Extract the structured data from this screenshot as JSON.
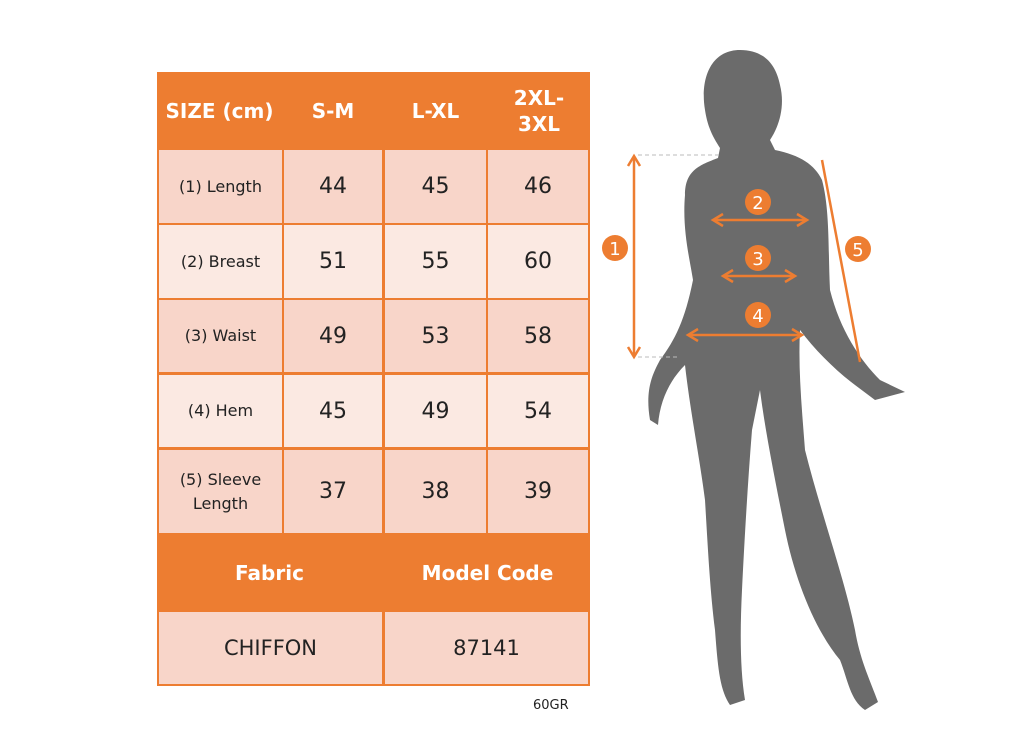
{
  "header": {
    "size": "SIZE (cm)",
    "cols": [
      "S-M",
      "L-XL",
      "2XL-3XL"
    ]
  },
  "rows": [
    {
      "label": "(1) Length",
      "values": [
        "44",
        "45",
        "46"
      ]
    },
    {
      "label": "(2) Breast",
      "values": [
        "51",
        "55",
        "60"
      ]
    },
    {
      "label": "(3) Waist",
      "values": [
        "49",
        "53",
        "58"
      ]
    },
    {
      "label": "(4) Hem",
      "values": [
        "45",
        "49",
        "54"
      ]
    },
    {
      "label": "(5) Sleeve Length",
      "values": [
        "37",
        "38",
        "39"
      ]
    }
  ],
  "footer": {
    "fabric_label": "Fabric",
    "model_label": "Model Code",
    "fabric": "CHIFFON",
    "model": "87141"
  },
  "note": "60GR",
  "markers": [
    "1",
    "2",
    "3",
    "4",
    "5"
  ],
  "colors": {
    "accent": "#ED7D31",
    "cell_dark": "#F8D5C9",
    "cell_light": "#FBE9E2",
    "silhouette": "#6B6B6B"
  }
}
